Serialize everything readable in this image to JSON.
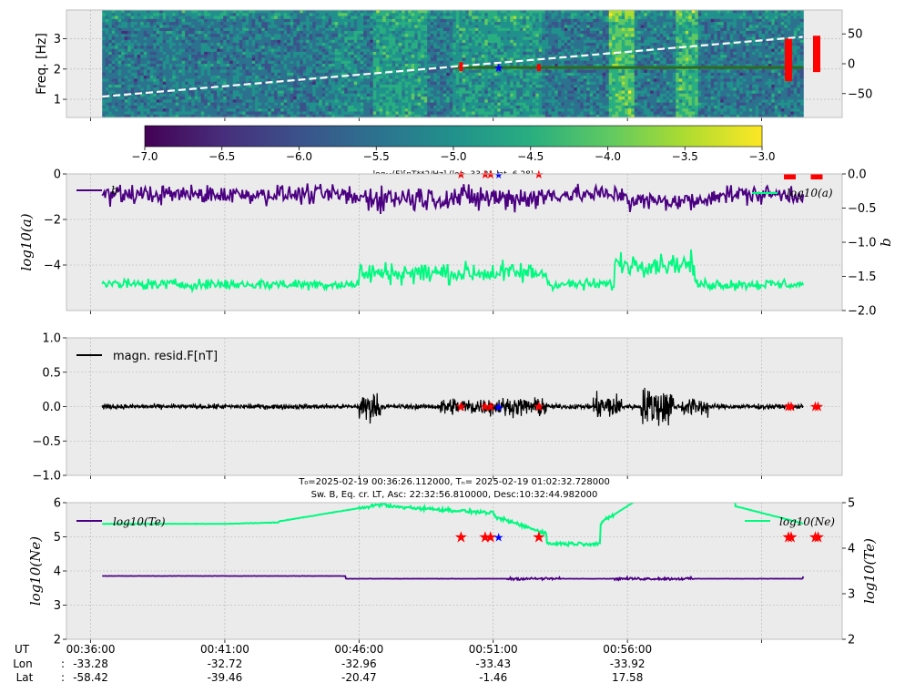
{
  "colors": {
    "axes_bg": "#ebebeb",
    "grid": "#b0b0b0",
    "series_purple": "#4b0082",
    "series_green": "#00fa7f",
    "marker_red": "#ff0000",
    "marker_blue": "#0000ff",
    "resid_black": "#000000",
    "spec_line_green": "#2e6b1f"
  },
  "chart_data": [
    {
      "type": "heatmap",
      "ylabel": "Freq. [Hz]",
      "ylim": [
        0.4,
        3.95
      ],
      "y_ticks": [
        "1",
        "2",
        "3"
      ],
      "y2_ticks": [
        "50",
        "0",
        "−50"
      ],
      "y2lim": [
        -90,
        90
      ],
      "colorbar": {
        "ticks": [
          "−7.0",
          "−6.5",
          "−6.0",
          "−5.5",
          "−5.0",
          "−4.5",
          "−4.0",
          "−3.5",
          "−3.0"
        ],
        "range": [
          -7.0,
          -3.0
        ],
        "label": "log₁₀(F)[nT**2/Hz] (lon -33.31 lat -6.28)"
      },
      "white_dashed_line": {
        "x_minutes": [
          0,
          26.1
        ],
        "y2": [
          -55,
          45
        ]
      },
      "green_line_y_hz": 2.05
    },
    {
      "type": "line",
      "ylim": [
        -6,
        0
      ],
      "y_ticks": [
        "0",
        "−2",
        "−4"
      ],
      "y2lim": [
        -2.0,
        0.0
      ],
      "y2_ticks": [
        "0.0",
        "−0.5",
        "−1.0",
        "−1.5",
        "−2.0"
      ],
      "ylabel": "log10(a)",
      "y2label": "b",
      "legend_left": "b",
      "legend_right": "log10(a)",
      "series": [
        {
          "name": "b",
          "axis": "right",
          "baseline": -0.3,
          "amplitude": 0.2
        },
        {
          "name": "log10(a)",
          "axis": "left",
          "baseline": -4.85,
          "amplitude": 0.35
        }
      ]
    },
    {
      "type": "line",
      "ylim": [
        -1.0,
        1.0
      ],
      "y_ticks": [
        "1.0",
        "0.5",
        "0.0",
        "−0.5",
        "−1.0"
      ],
      "legend": "magn. resid.F[nT]",
      "series": [
        {
          "name": "magn. resid.F[nT]",
          "baseline": 0.0,
          "amplitude": 0.05
        }
      ]
    },
    {
      "type": "line",
      "title_line1": "T₀=2025-02-19 00:36:26.112000, Tₙ= 2025-02-19 01:02:32.728000",
      "title_line2": "Sw. B, Eq. cr. LT, Asc: 22:32:56.810000, Desc:10:32:44.982000",
      "ylim": [
        2,
        6
      ],
      "y_ticks": [
        "6",
        "5",
        "4",
        "3",
        "2"
      ],
      "y2lim": [
        2,
        5
      ],
      "y2_ticks": [
        "5",
        "4",
        "3",
        "2"
      ],
      "ylabel": "log10(Ne)",
      "y2label": "log10(Te)",
      "legend_left": "log10(Te)",
      "legend_right": "log10(Ne)",
      "series": [
        {
          "name": "log10(Ne)",
          "axis": "left",
          "baseline": 5.4
        },
        {
          "name": "log10(Te)",
          "axis": "right",
          "baseline": 3.38
        }
      ]
    }
  ],
  "x_axis": {
    "row_labels": [
      "UT",
      "Lon",
      "Lat"
    ],
    "colon": ":",
    "ticks": [
      {
        "ut": "00:36:00",
        "lon": "-33.28",
        "lat": "-58.42",
        "minute": 0
      },
      {
        "ut": "00:41:00",
        "lon": "-32.72",
        "lat": "-39.46",
        "minute": 5
      },
      {
        "ut": "00:46:00",
        "lon": "-32.96",
        "lat": "-20.47",
        "minute": 10
      },
      {
        "ut": "00:51:00",
        "lon": "-33.43",
        "lat": "-1.46",
        "minute": 15
      },
      {
        "ut": "00:56:00",
        "lon": "-33.92",
        "lat": "17.58",
        "minute": 20
      },
      {
        "ut": "",
        "lon": "",
        "lat": "",
        "minute": 25
      }
    ],
    "data_range_minutes": [
      0.43,
      26.55
    ],
    "x_range_minutes": [
      -0.9,
      28.0
    ]
  },
  "event_markers_minutes": {
    "red": [
      13.8,
      14.7,
      14.9,
      16.7,
      26.0,
      26.1,
      27.0,
      27.1
    ],
    "blue": [
      15.2
    ]
  }
}
